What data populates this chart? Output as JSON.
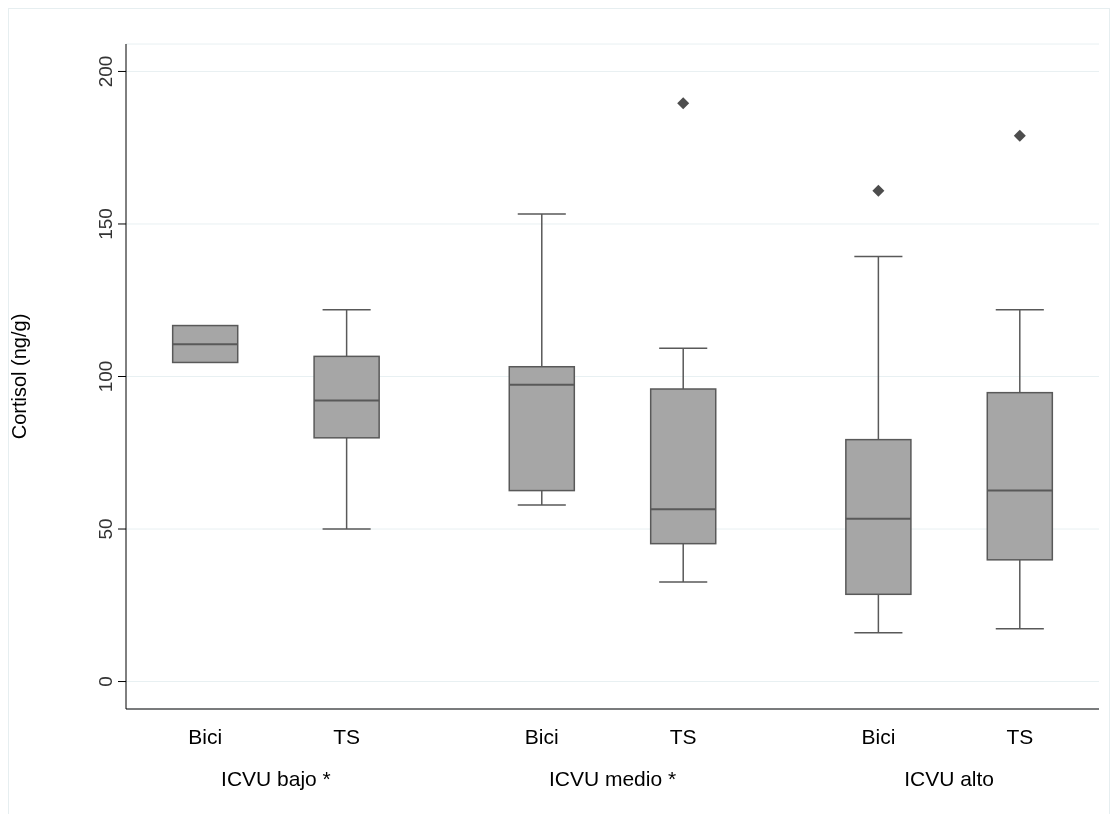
{
  "chart_data": {
    "type": "box",
    "ylabel": "Cortisol (ng/g)",
    "categories": [
      "Bici",
      "TS",
      "Bici",
      "TS",
      "Bici",
      "TS"
    ],
    "annotations": [
      "ICVU bajo *",
      "ICVU medio *",
      "ICVU alto"
    ],
    "ylim": [
      -9,
      209
    ],
    "yticks": [
      0,
      50,
      100,
      150,
      200
    ],
    "grid": "y",
    "marker": "diamond",
    "series": [
      {
        "color": "#a6a6a6",
        "boxes": [
          {
            "low": 104.6,
            "q1": 104.6,
            "median": 110.6,
            "q3": 116.7,
            "high": 116.7
          },
          {
            "low": 50,
            "q1": 79.9,
            "median": 92.1,
            "q3": 106.6,
            "high": 121.9
          },
          {
            "low": 57.9,
            "q1": 62.6,
            "median": 97.3,
            "q3": 103.2,
            "high": 153.3
          },
          {
            "low": 32.6,
            "q1": 45.2,
            "median": 56.5,
            "q3": 95.9,
            "high": 109.3,
            "outliers": [
              189.6
            ]
          },
          {
            "low": 16,
            "q1": 28.6,
            "median": 53.4,
            "q3": 79.3,
            "high": 139.3,
            "outliers": [
              160.9
            ]
          },
          {
            "low": 17.3,
            "q1": 39.9,
            "median": 62.6,
            "q3": 94.7,
            "high": 121.9,
            "outliers": [
              178.9
            ]
          }
        ]
      }
    ]
  }
}
